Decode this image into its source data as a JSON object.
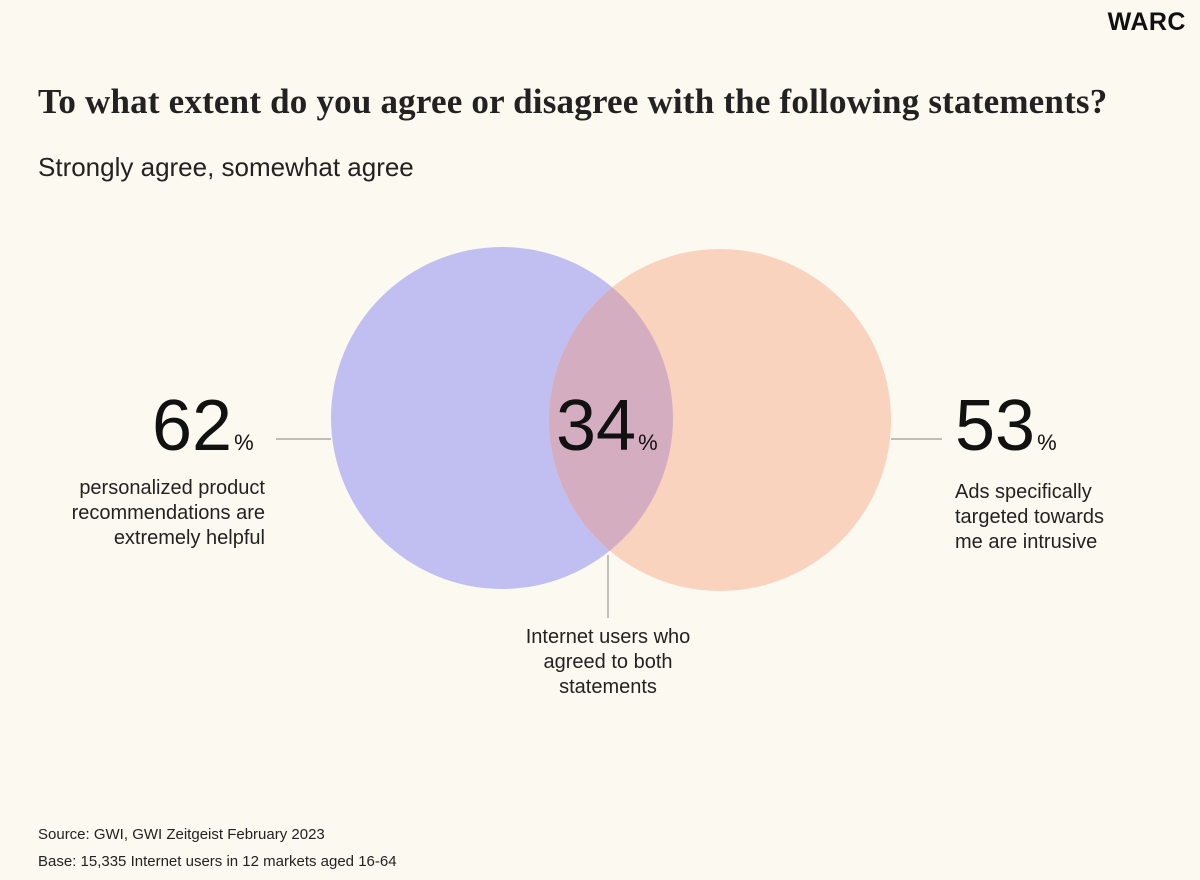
{
  "brand": {
    "logo_text": "WARC"
  },
  "title": "To what extent do you agree or disagree with the following statements?",
  "subtitle": "Strongly agree, somewhat agree",
  "venn": {
    "left": {
      "value": "62",
      "unit": "%",
      "label_lines": [
        "personalized product",
        "recommendations are",
        "extremely helpful"
      ],
      "color": "#c1bff2"
    },
    "right": {
      "value": "53",
      "unit": "%",
      "label_lines": [
        "Ads specifically",
        "targeted towards",
        "me are intrusive"
      ],
      "color": "#f9d3be"
    },
    "overlap": {
      "value": "34",
      "unit": "%",
      "label_lines": [
        "Internet users who",
        "agreed to both",
        "statements"
      ],
      "color": "#d4aec0"
    }
  },
  "footer": {
    "source": "Source: GWI, GWI Zeitgeist February 2023",
    "base": "Base: 15,335 Internet users in 12 markets aged 16-64"
  }
}
